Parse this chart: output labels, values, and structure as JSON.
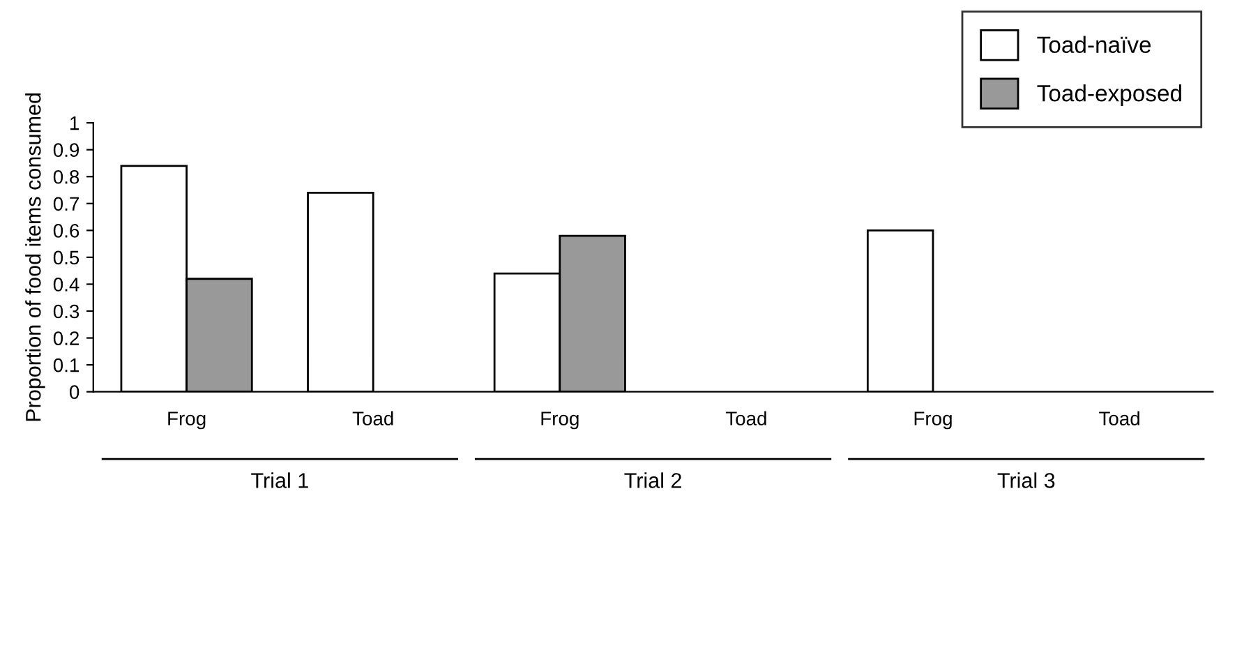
{
  "chart_data": {
    "type": "bar",
    "ylabel": "Proportion of food items consumed",
    "categories": [
      "Frog",
      "Toad",
      "Frog",
      "Toad",
      "Frog",
      "Toad"
    ],
    "series": [
      {
        "name": "Toad-naïve",
        "color": "#ffffff",
        "values": [
          0.84,
          0.74,
          0.44,
          0,
          0.6,
          0
        ]
      },
      {
        "name": "Toad-exposed",
        "color": "#999999",
        "values": [
          0.42,
          0,
          0.58,
          0,
          0,
          0
        ]
      }
    ],
    "ylim": [
      0,
      1
    ],
    "yticks": [
      0,
      0.1,
      0.2,
      0.3,
      0.4,
      0.5,
      0.6,
      0.7,
      0.8,
      0.9,
      1
    ],
    "annotations": [
      "Trial 1",
      "Trial 2",
      "Trial 3"
    ],
    "grid": false,
    "legend": "top right"
  }
}
